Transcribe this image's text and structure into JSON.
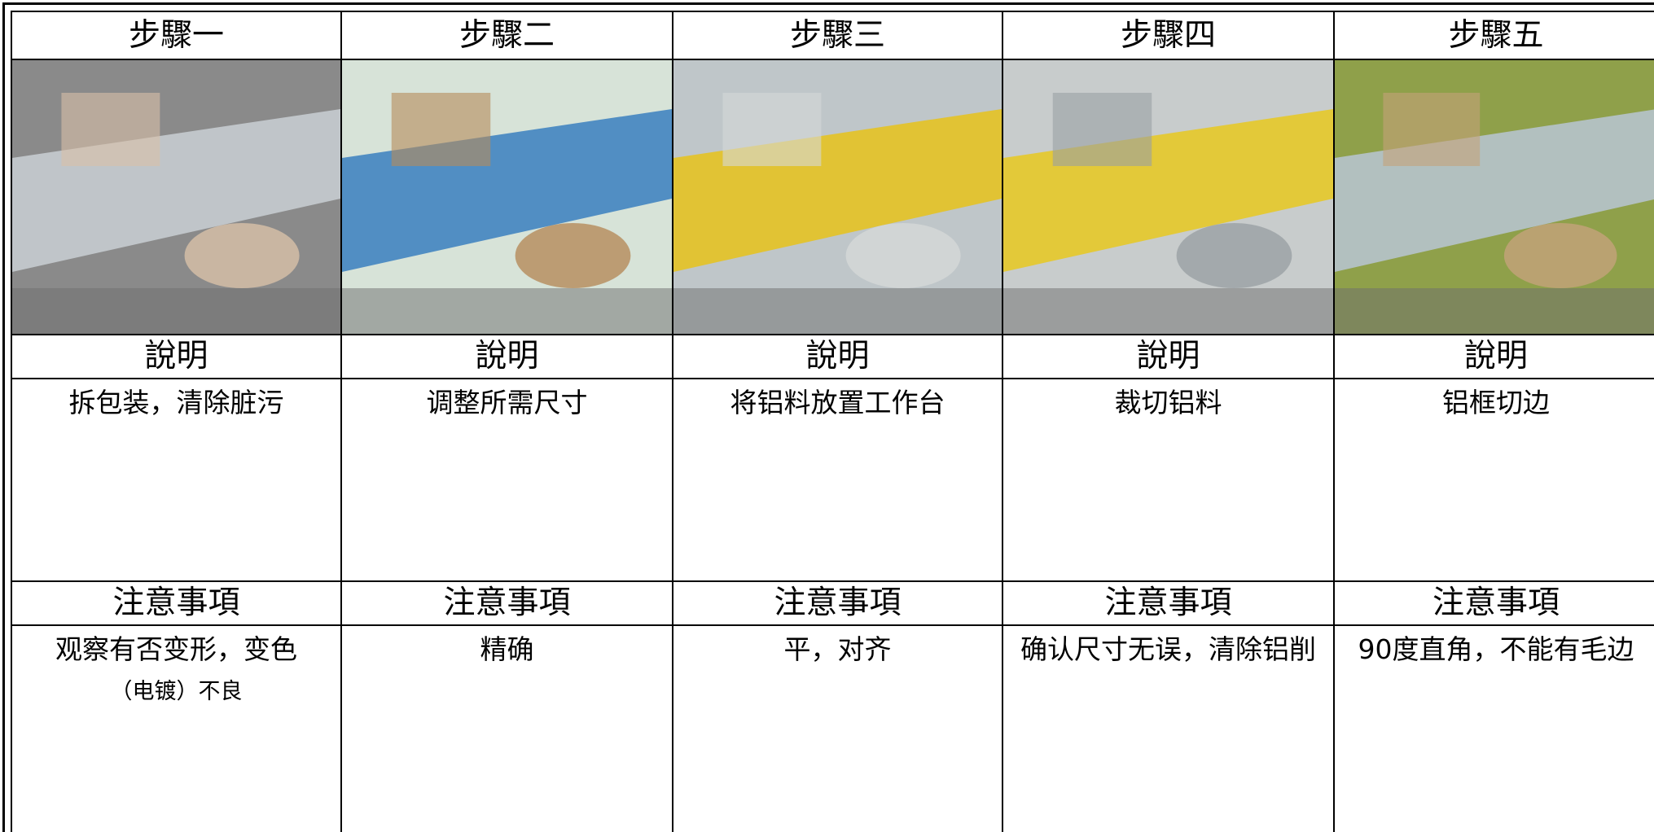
{
  "steps": [
    {
      "title": "步驟一",
      "description_label": "說明",
      "description": "拆包装，清除脏污",
      "caution_label": "注意事項",
      "caution": "观察有否变形，变色",
      "caution_note": "（电镀）不良"
    },
    {
      "title": "步驟二",
      "description_label": "說明",
      "description": "调整所需尺寸",
      "caution_label": "注意事項",
      "caution": "精确"
    },
    {
      "title": "步驟三",
      "description_label": "說明",
      "description": "将铝料放置工作台",
      "caution_label": "注意事項",
      "caution": "平，对齐"
    },
    {
      "title": "步驟四",
      "description_label": "說明",
      "description": "裁切铝料",
      "caution_label": "注意事項",
      "caution": "确认尺寸无误，清除铝削"
    },
    {
      "title": "步驟五",
      "description_label": "說明",
      "description": "铝框切边",
      "caution_label": "注意事項",
      "caution": "90度直角，不能有毛边"
    }
  ]
}
